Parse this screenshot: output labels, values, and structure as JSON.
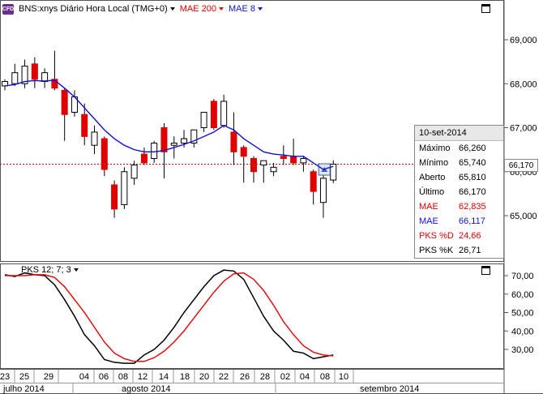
{
  "header": {
    "badge": "CFD",
    "symbol": "BNS:xnys Diário Hora Local (TMG+0)",
    "ind1": "MAE 200",
    "ind2": "MAE 8"
  },
  "colors": {
    "up": "#ffffff",
    "down": "#e00000",
    "mae8": "#1010d0",
    "stoch_k": "#000000",
    "stoch_d": "#e01010",
    "last_line": "#cc0000"
  },
  "price_axis": [
    "69,000",
    "68,000",
    "67,000",
    "66,000",
    "65,000"
  ],
  "last_price": "66,170",
  "info": {
    "date": "10-set-2014",
    "rows": [
      {
        "label": "Máximo",
        "value": "66,260"
      },
      {
        "label": "Mínimo",
        "value": "65,740"
      },
      {
        "label": "Aberto",
        "value": "65,810"
      },
      {
        "label": "Último",
        "value": "66,170"
      },
      {
        "label": "MAE",
        "value": "62,835"
      },
      {
        "label": "MAE",
        "value": "66,117"
      },
      {
        "label": "PKS %D",
        "value": "24,66"
      },
      {
        "label": "PKS %K",
        "value": "26,71"
      }
    ]
  },
  "stoch": {
    "label": "PKS 12; 7; 3",
    "axis": [
      "70,00",
      "60,00",
      "50,00",
      "40,00",
      "30,00"
    ]
  },
  "x_axis": {
    "days": [
      "23",
      "25",
      "29",
      "04",
      "06",
      "08",
      "12",
      "14",
      "18",
      "20",
      "22",
      "26",
      "28",
      "02",
      "04",
      "08",
      "10"
    ],
    "months": [
      "julho 2014",
      "agosto 2014",
      "setembro 2014"
    ]
  },
  "chart_data": {
    "type": "candlestick",
    "ylim": [
      64.2,
      69.8
    ],
    "candles": [
      {
        "o": 67.95,
        "h": 68.1,
        "l": 67.85,
        "c": 68.05
      },
      {
        "o": 68.0,
        "h": 68.45,
        "l": 67.95,
        "c": 68.25
      },
      {
        "o": 68.0,
        "h": 68.55,
        "l": 67.9,
        "c": 68.4
      },
      {
        "o": 68.45,
        "h": 68.6,
        "l": 67.9,
        "c": 68.1
      },
      {
        "o": 68.05,
        "h": 68.35,
        "l": 67.9,
        "c": 68.25
      },
      {
        "o": 68.1,
        "h": 68.75,
        "l": 67.85,
        "c": 67.9
      },
      {
        "o": 67.85,
        "h": 67.9,
        "l": 66.7,
        "c": 67.3
      },
      {
        "o": 67.35,
        "h": 67.85,
        "l": 67.25,
        "c": 67.7
      },
      {
        "o": 67.3,
        "h": 67.55,
        "l": 66.6,
        "c": 66.8
      },
      {
        "o": 66.6,
        "h": 67.05,
        "l": 66.4,
        "c": 66.9
      },
      {
        "o": 66.75,
        "h": 66.8,
        "l": 65.9,
        "c": 66.05
      },
      {
        "o": 65.7,
        "h": 65.8,
        "l": 64.95,
        "c": 65.15
      },
      {
        "o": 65.25,
        "h": 66.1,
        "l": 65.15,
        "c": 66.0
      },
      {
        "o": 65.85,
        "h": 66.25,
        "l": 65.7,
        "c": 66.15
      },
      {
        "o": 66.4,
        "h": 66.55,
        "l": 66.15,
        "c": 66.2
      },
      {
        "o": 66.3,
        "h": 66.7,
        "l": 66.2,
        "c": 66.65
      },
      {
        "o": 67.0,
        "h": 67.1,
        "l": 65.85,
        "c": 66.45
      },
      {
        "o": 66.6,
        "h": 66.8,
        "l": 66.3,
        "c": 66.65
      },
      {
        "o": 66.65,
        "h": 66.95,
        "l": 66.55,
        "c": 66.75
      },
      {
        "o": 66.65,
        "h": 66.95,
        "l": 66.55,
        "c": 66.95
      },
      {
        "o": 67.0,
        "h": 67.3,
        "l": 66.9,
        "c": 67.35
      },
      {
        "o": 67.6,
        "h": 67.65,
        "l": 66.95,
        "c": 67.0
      },
      {
        "o": 67.05,
        "h": 67.75,
        "l": 67.0,
        "c": 67.6
      },
      {
        "o": 66.9,
        "h": 67.35,
        "l": 66.15,
        "c": 66.45
      },
      {
        "o": 66.55,
        "h": 66.6,
        "l": 65.75,
        "c": 66.35
      },
      {
        "o": 66.3,
        "h": 66.35,
        "l": 65.75,
        "c": 66.0
      },
      {
        "o": 66.15,
        "h": 66.2,
        "l": 65.75,
        "c": 66.25
      },
      {
        "o": 66.0,
        "h": 66.2,
        "l": 65.9,
        "c": 66.1
      },
      {
        "o": 66.35,
        "h": 66.6,
        "l": 66.15,
        "c": 66.3
      },
      {
        "o": 66.35,
        "h": 66.75,
        "l": 66.15,
        "c": 66.2
      },
      {
        "o": 66.2,
        "h": 66.35,
        "l": 66.0,
        "c": 66.3
      },
      {
        "o": 66.0,
        "h": 66.05,
        "l": 65.25,
        "c": 65.55
      },
      {
        "o": 65.3,
        "h": 66.1,
        "l": 64.95,
        "c": 65.85
      },
      {
        "o": 65.81,
        "h": 66.26,
        "l": 65.74,
        "c": 66.17
      }
    ],
    "mae8": [
      67.95,
      67.98,
      68.05,
      68.07,
      68.06,
      68.08,
      67.9,
      67.7,
      67.45,
      67.2,
      66.95,
      66.75,
      66.6,
      66.5,
      66.45,
      66.45,
      66.48,
      66.55,
      66.62,
      66.7,
      66.8,
      66.9,
      67.05,
      66.95,
      66.75,
      66.6,
      66.45,
      66.4,
      66.38,
      66.35,
      66.35,
      66.2,
      66.05,
      66.12
    ],
    "stoch_k": [
      70.5,
      69.5,
      71.5,
      70.5,
      70.0,
      65.0,
      57.0,
      48.0,
      38.0,
      32.0,
      24.5,
      23.0,
      22.5,
      22.5,
      27.0,
      30.0,
      35.0,
      42.0,
      50.0,
      57.0,
      64.0,
      70.0,
      73.0,
      72.5,
      68.0,
      58.0,
      48.0,
      40.0,
      35.0,
      29.0,
      28.0,
      25.0,
      26.0,
      27.0
    ],
    "stoch_d": [
      70.0,
      70.0,
      70.0,
      70.5,
      70.5,
      69.0,
      64.0,
      57.0,
      50.0,
      42.0,
      34.0,
      28.0,
      25.0,
      23.5,
      23.5,
      25.5,
      29.0,
      34.0,
      40.0,
      47.0,
      54.0,
      61.0,
      67.0,
      71.0,
      71.5,
      68.0,
      62.0,
      54.0,
      45.0,
      38.0,
      32.0,
      28.5,
      27.0,
      26.5
    ],
    "stoch_ylim": [
      21,
      74
    ]
  }
}
